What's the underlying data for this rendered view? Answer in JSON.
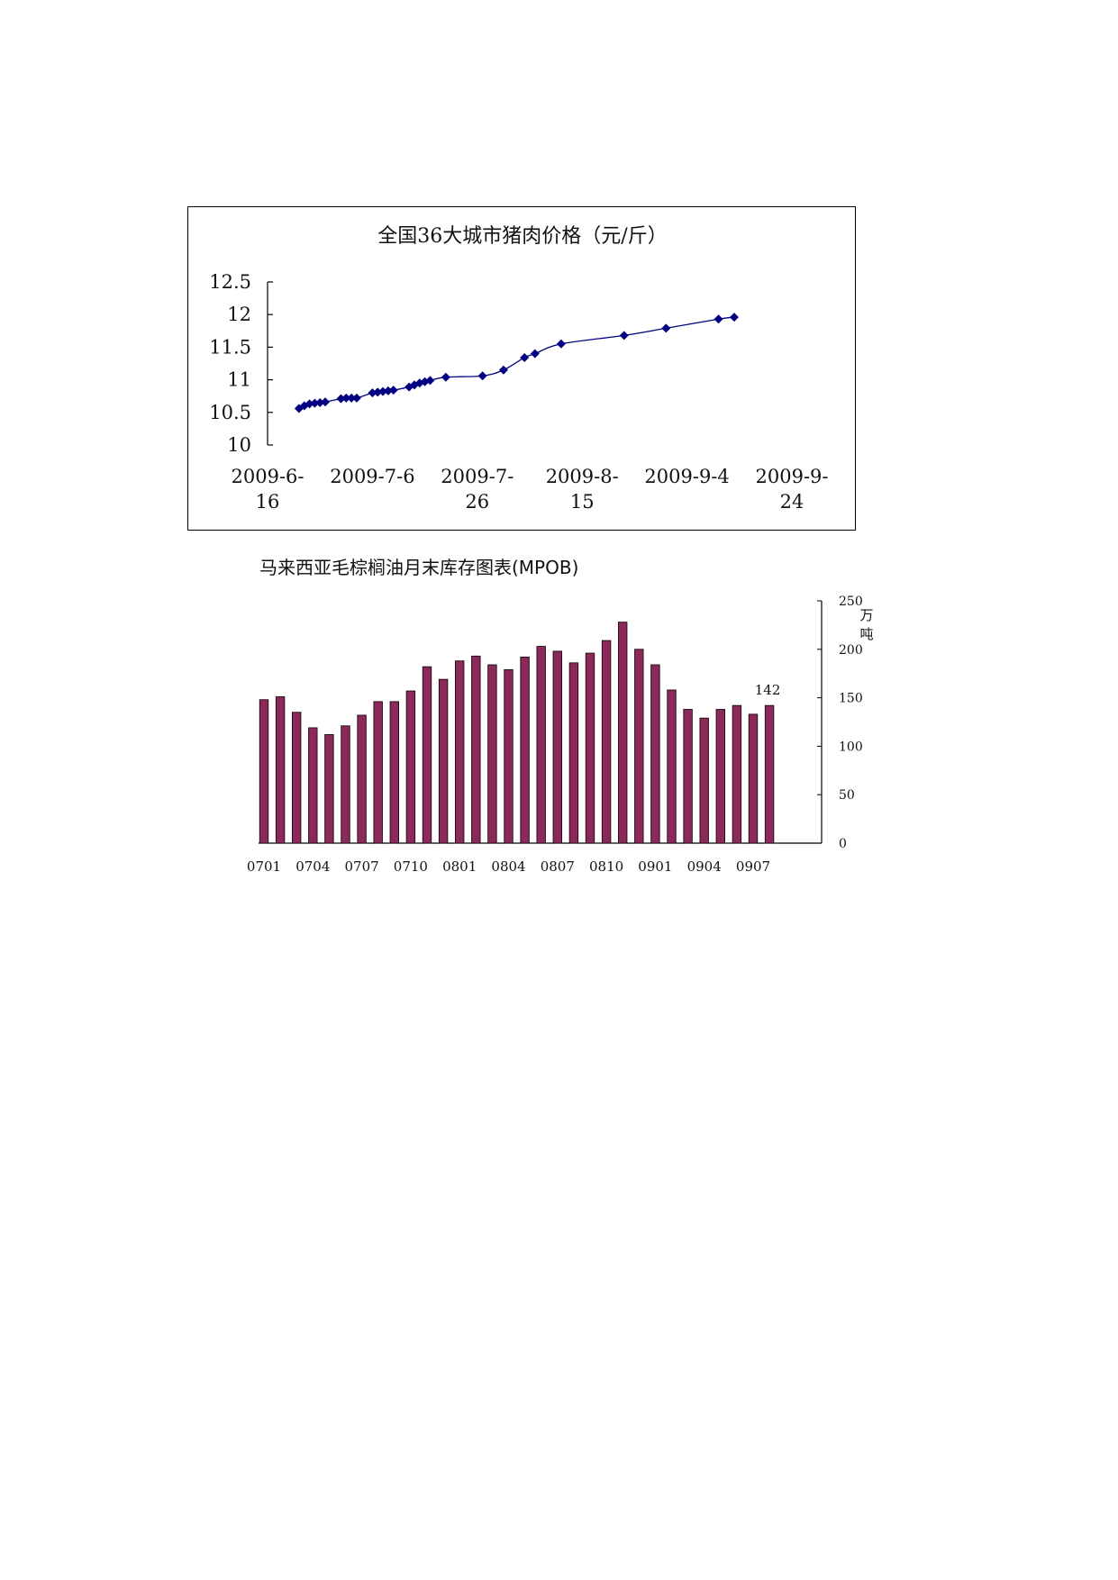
{
  "chart_data": [
    {
      "type": "line",
      "title": "全国36大城市猪肉价格（元/斤）",
      "ylim": [
        10,
        12.5
      ],
      "yticks": [
        "12.5",
        "12",
        "11.5",
        "11",
        "10.5",
        "10"
      ],
      "xlim": [
        "2009-6-16",
        "2009-9-24"
      ],
      "xticks": [
        {
          "line1": "2009-6-",
          "line2": "16",
          "date": "2009-06-16"
        },
        {
          "line1": "2009-7-6",
          "line2": "",
          "date": "2009-07-06"
        },
        {
          "line1": "2009-7-",
          "line2": "26",
          "date": "2009-07-26"
        },
        {
          "line1": "2009-8-",
          "line2": "15",
          "date": "2009-08-15"
        },
        {
          "line1": "2009-9-4",
          "line2": "",
          "date": "2009-09-04"
        },
        {
          "line1": "2009-9-",
          "line2": "24",
          "date": "2009-09-24"
        }
      ],
      "color": "#000080",
      "grid": false,
      "points": [
        {
          "x": "2009-06-22",
          "y": 10.56
        },
        {
          "x": "2009-06-23",
          "y": 10.6
        },
        {
          "x": "2009-06-24",
          "y": 10.63
        },
        {
          "x": "2009-06-25",
          "y": 10.64
        },
        {
          "x": "2009-06-26",
          "y": 10.65
        },
        {
          "x": "2009-06-27",
          "y": 10.66
        },
        {
          "x": "2009-06-30",
          "y": 10.71
        },
        {
          "x": "2009-07-01",
          "y": 10.72
        },
        {
          "x": "2009-07-02",
          "y": 10.72
        },
        {
          "x": "2009-07-03",
          "y": 10.72
        },
        {
          "x": "2009-07-06",
          "y": 10.8
        },
        {
          "x": "2009-07-07",
          "y": 10.81
        },
        {
          "x": "2009-07-08",
          "y": 10.82
        },
        {
          "x": "2009-07-09",
          "y": 10.83
        },
        {
          "x": "2009-07-10",
          "y": 10.84
        },
        {
          "x": "2009-07-13",
          "y": 10.89
        },
        {
          "x": "2009-07-14",
          "y": 10.92
        },
        {
          "x": "2009-07-15",
          "y": 10.95
        },
        {
          "x": "2009-07-16",
          "y": 10.97
        },
        {
          "x": "2009-07-17",
          "y": 10.99
        },
        {
          "x": "2009-07-20",
          "y": 11.04
        },
        {
          "x": "2009-07-27",
          "y": 11.06
        },
        {
          "x": "2009-07-31",
          "y": 11.15
        },
        {
          "x": "2009-08-04",
          "y": 11.34
        },
        {
          "x": "2009-08-06",
          "y": 11.4
        },
        {
          "x": "2009-08-11",
          "y": 11.55
        },
        {
          "x": "2009-08-23",
          "y": 11.68
        },
        {
          "x": "2009-08-31",
          "y": 11.79
        },
        {
          "x": "2009-09-10",
          "y": 11.93
        },
        {
          "x": "2009-09-13",
          "y": 11.96
        }
      ]
    },
    {
      "type": "bar",
      "title": "马来西亚毛棕榈油月末库存图表(MPOB)",
      "ylim": [
        0,
        250
      ],
      "yticks": [
        "250",
        "200",
        "150",
        "100",
        "50",
        "0"
      ],
      "ylabel": "万吨",
      "unit_top": "万",
      "unit_bottom": "吨",
      "color": "#8B2A5A",
      "grid": false,
      "categories": [
        "0701",
        "0702",
        "0703",
        "0704",
        "0705",
        "0706",
        "0707",
        "0708",
        "0709",
        "0710",
        "0711",
        "0712",
        "0801",
        "0802",
        "0803",
        "0804",
        "0805",
        "0806",
        "0807",
        "0808",
        "0809",
        "0810",
        "0811",
        "0812",
        "0901",
        "0902",
        "0903",
        "0904",
        "0905",
        "0906",
        "0907",
        "0908"
      ],
      "xtick_labels": [
        "0701",
        "0704",
        "0707",
        "0710",
        "0801",
        "0804",
        "0807",
        "0810",
        "0901",
        "0904",
        "0907"
      ],
      "values": [
        148,
        151,
        135,
        119,
        112,
        121,
        132,
        146,
        146,
        157,
        182,
        169,
        188,
        193,
        184,
        179,
        192,
        203,
        198,
        186,
        196,
        209,
        228,
        200,
        184,
        158,
        138,
        129,
        138,
        142,
        133,
        142
      ],
      "annotation": {
        "index": 31,
        "text": "142"
      }
    }
  ]
}
